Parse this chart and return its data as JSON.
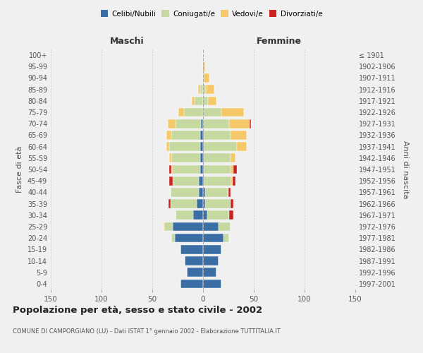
{
  "age_groups": [
    "0-4",
    "5-9",
    "10-14",
    "15-19",
    "20-24",
    "25-29",
    "30-34",
    "35-39",
    "40-44",
    "45-49",
    "50-54",
    "55-59",
    "60-64",
    "65-69",
    "70-74",
    "75-79",
    "80-84",
    "85-89",
    "90-94",
    "95-99",
    "100+"
  ],
  "birth_years": [
    "1997-2001",
    "1992-1996",
    "1987-1991",
    "1982-1986",
    "1977-1981",
    "1972-1976",
    "1967-1971",
    "1962-1966",
    "1957-1961",
    "1952-1956",
    "1947-1951",
    "1942-1946",
    "1937-1941",
    "1932-1936",
    "1927-1931",
    "1922-1926",
    "1917-1921",
    "1912-1916",
    "1907-1911",
    "1902-1906",
    "≤ 1901"
  ],
  "male": {
    "celibi": [
      22,
      16,
      18,
      22,
      28,
      30,
      10,
      6,
      4,
      4,
      3,
      3,
      3,
      3,
      2,
      1,
      0,
      0,
      0,
      0,
      0
    ],
    "coniugati": [
      0,
      0,
      0,
      0,
      3,
      8,
      17,
      26,
      28,
      26,
      27,
      28,
      30,
      28,
      25,
      18,
      8,
      3,
      1,
      1,
      0
    ],
    "vedovi": [
      0,
      0,
      0,
      0,
      0,
      1,
      0,
      0,
      0,
      0,
      1,
      2,
      3,
      5,
      8,
      5,
      3,
      2,
      0,
      0,
      0
    ],
    "divorziati": [
      0,
      0,
      0,
      0,
      0,
      0,
      0,
      2,
      0,
      3,
      2,
      0,
      0,
      0,
      0,
      0,
      0,
      0,
      0,
      0,
      0
    ]
  },
  "female": {
    "celibi": [
      18,
      13,
      15,
      18,
      20,
      15,
      4,
      2,
      2,
      1,
      1,
      1,
      1,
      1,
      0,
      0,
      0,
      0,
      0,
      0,
      0
    ],
    "coniugati": [
      0,
      0,
      0,
      0,
      6,
      12,
      22,
      25,
      22,
      27,
      26,
      26,
      32,
      26,
      26,
      18,
      5,
      3,
      1,
      0,
      0
    ],
    "vedovi": [
      0,
      0,
      0,
      0,
      0,
      0,
      0,
      0,
      1,
      1,
      3,
      5,
      10,
      16,
      20,
      22,
      8,
      8,
      5,
      2,
      0
    ],
    "divorziati": [
      0,
      0,
      0,
      0,
      0,
      0,
      4,
      3,
      2,
      3,
      3,
      0,
      0,
      0,
      1,
      0,
      0,
      0,
      0,
      0,
      0
    ]
  },
  "colors": {
    "celibi": "#3a6ea5",
    "coniugati": "#c5d9a0",
    "vedovi": "#f5c96a",
    "divorziati": "#cc2222"
  },
  "xlim": 150,
  "title": "Popolazione per età, sesso e stato civile - 2002",
  "subtitle": "COMUNE DI CAMPORGIANO (LU) - Dati ISTAT 1° gennaio 2002 - Elaborazione TUTTITALIA.IT",
  "ylabel_left": "Fasce di età",
  "ylabel_right": "Anni di nascita",
  "xlabel_left": "Maschi",
  "xlabel_right": "Femmine",
  "legend_labels": [
    "Celibi/Nubili",
    "Coniugati/e",
    "Vedovi/e",
    "Divorziati/e"
  ],
  "bg_color": "#f0f0f0",
  "grid_color": "#cccccc"
}
